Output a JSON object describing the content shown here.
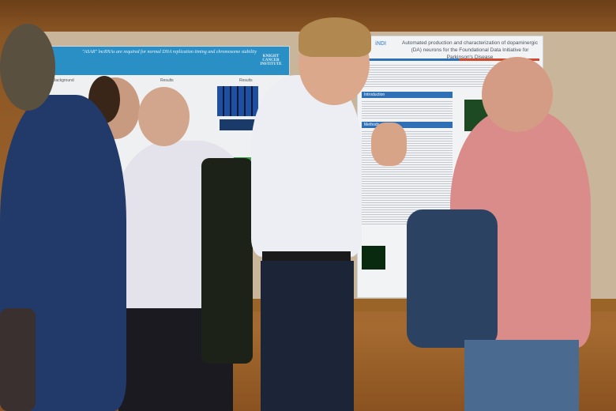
{
  "scene": "poster-session",
  "poster_left": {
    "title": "\"ASAR\" lncRNAs are required for normal DNA replication timing and chromosome stability",
    "logo": "KNIGHT CANCER INSTITUTE",
    "sections": [
      "Background",
      "Results",
      "Results"
    ]
  },
  "poster_right": {
    "logo": "iNDI",
    "title": "Automated production and characterization of dopaminergic (DA) neurons for the Foundational Data Initiative for Parkinson's Disease",
    "sections": [
      "Introduction",
      "Methods"
    ]
  },
  "colors": {
    "wall": "#a46a30",
    "board": "#c8b59a",
    "poster_banner": "#2a8fc4",
    "section_header": "#2f6fb5"
  }
}
